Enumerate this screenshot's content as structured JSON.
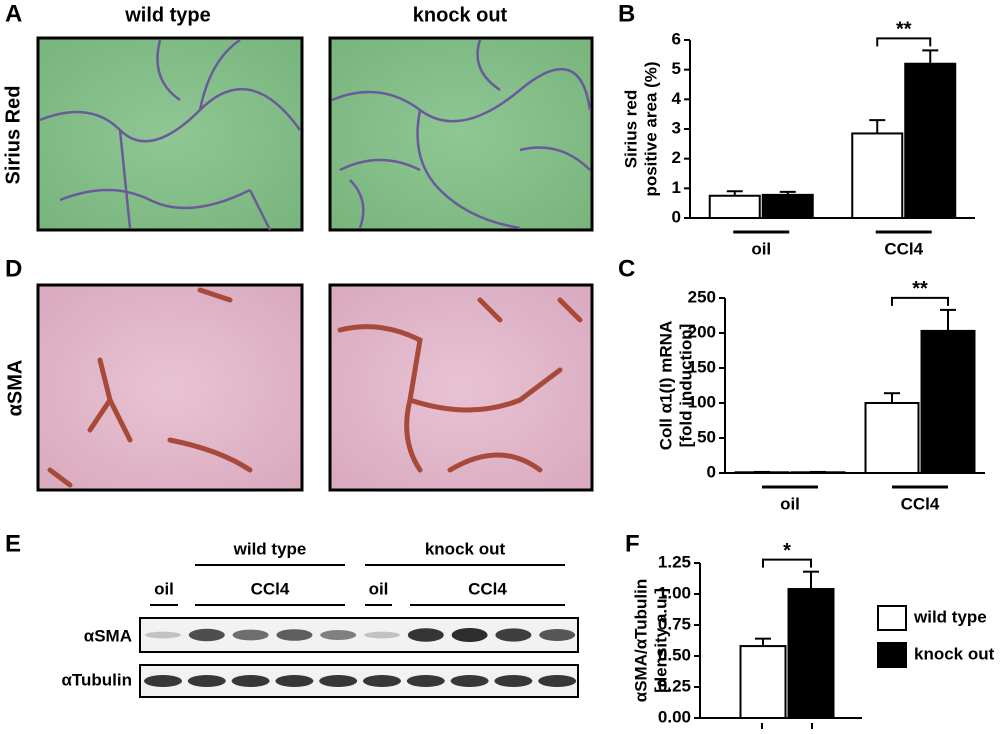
{
  "panel_labels": [
    "A",
    "B",
    "C",
    "D",
    "E",
    "F"
  ],
  "panel_a": {
    "row_label": "Sirius Red",
    "col_labels": [
      "wild type",
      "knock out"
    ]
  },
  "panel_d": {
    "row_label": "αSMA"
  },
  "panel_e": {
    "groups": [
      "wild type",
      "knock out"
    ],
    "treatments": [
      "oil",
      "CCl4",
      "oil",
      "CCl4"
    ],
    "rows": [
      "αSMA",
      "αTubulin"
    ]
  },
  "chart_data": [
    {
      "type": "bar",
      "y_label": [
        "Sirius red",
        "positive area (%)"
      ],
      "categories": [
        "oil",
        "CCl4"
      ],
      "series": [
        {
          "color": "#ffffff",
          "values": [
            0.75,
            2.85
          ],
          "errors": [
            0.15,
            0.45
          ]
        },
        {
          "color": "#000000",
          "values": [
            0.78,
            5.2
          ],
          "errors": [
            0.1,
            0.45
          ]
        }
      ],
      "significance": [
        null,
        "**"
      ],
      "ylim": [
        0,
        6
      ],
      "yticks": [
        0,
        1,
        2,
        3,
        4,
        5,
        6
      ]
    },
    {
      "type": "bar",
      "y_label": [
        "Coll α1(I) mRNA",
        "[fold induction]"
      ],
      "categories": [
        "oil",
        "CCl4"
      ],
      "series": [
        {
          "color": "#ffffff",
          "values": [
            1,
            100
          ],
          "errors": [
            0.5,
            14
          ]
        },
        {
          "color": "#000000",
          "values": [
            1,
            203
          ],
          "errors": [
            0.5,
            30
          ]
        }
      ],
      "significance": [
        null,
        "**"
      ],
      "ylim": [
        0,
        250
      ],
      "yticks": [
        0,
        50,
        100,
        150,
        200,
        250
      ]
    },
    {
      "type": "bar",
      "y_label": [
        "αSMA/αTubulin",
        "[density a.u.]"
      ],
      "categories": [
        null
      ],
      "series": [
        {
          "name": "wild type",
          "color": "#ffffff",
          "values": [
            0.58
          ],
          "errors": [
            0.06
          ]
        },
        {
          "name": "knock out",
          "color": "#000000",
          "values": [
            1.04
          ],
          "errors": [
            0.14
          ]
        }
      ],
      "significance": [
        "*"
      ],
      "ylim": [
        0,
        1.25
      ],
      "yticks": [
        {
          "value": 0,
          "label": "0.00"
        },
        {
          "value": 0.25,
          "label": "0.25"
        },
        {
          "value": 0.5,
          "label": "0.50"
        },
        {
          "value": 0.75,
          "label": "0.75"
        },
        {
          "value": 1,
          "label": "1.00"
        },
        {
          "value": 1.25,
          "label": "1.25"
        }
      ]
    }
  ]
}
